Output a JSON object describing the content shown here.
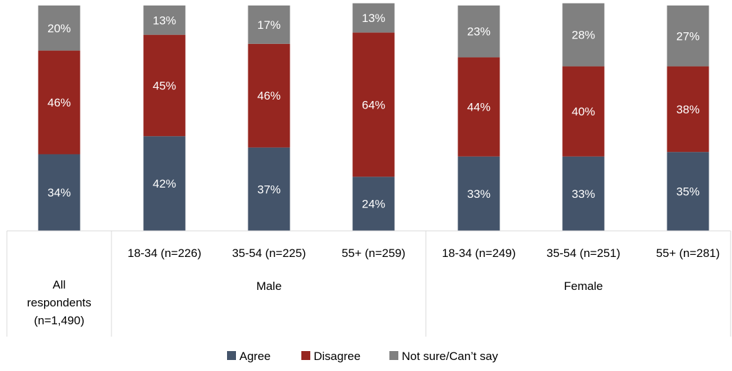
{
  "chart_data": {
    "type": "bar",
    "stacked": true,
    "normalized": true,
    "groups": [
      {
        "name": "",
        "categories": [
          "All respondents (n=1,490)"
        ]
      },
      {
        "name": "Male",
        "categories": [
          "18-34 (n=226)",
          "35-54 (n=225)",
          "55+ (n=259)"
        ]
      },
      {
        "name": "Female",
        "categories": [
          "18-34 (n=249)",
          "35-54 (n=251)",
          "55+ (n=281)"
        ]
      }
    ],
    "categories": [
      "All respondents (n=1,490)",
      "18-34 (n=226)",
      "35-54 (n=225)",
      "55+ (n=259)",
      "18-34 (n=249)",
      "35-54 (n=251)",
      "55+ (n=281)"
    ],
    "series": [
      {
        "name": "Agree",
        "color": "#44546A",
        "values": [
          34,
          42,
          37,
          24,
          33,
          33,
          35
        ]
      },
      {
        "name": "Disagree",
        "color": "#962620",
        "values": [
          46,
          45,
          46,
          64,
          44,
          40,
          38
        ]
      },
      {
        "name": "Not sure/Can’t say",
        "color": "#808080",
        "values": [
          20,
          13,
          17,
          13,
          23,
          28,
          27
        ]
      }
    ],
    "data_labels": [
      [
        "34%",
        "42%",
        "37%",
        "24%",
        "33%",
        "33%",
        "35%"
      ],
      [
        "46%",
        "45%",
        "46%",
        "64%",
        "44%",
        "40%",
        "38%"
      ],
      [
        "20%",
        "13%",
        "17%",
        "13%",
        "23%",
        "28%",
        "27%"
      ]
    ],
    "cat_label_lines": [
      [
        "All",
        "respondents",
        "(n=1,490)"
      ],
      [
        "18-34 (n=226)"
      ],
      [
        "35-54 (n=225)"
      ],
      [
        "55+ (n=259)"
      ],
      [
        "18-34 (n=249)"
      ],
      [
        "35-54 (n=251)"
      ],
      [
        "55+ (n=281)"
      ]
    ],
    "ylim": [
      0,
      100
    ],
    "legend_position": "bottom",
    "grid": false
  }
}
